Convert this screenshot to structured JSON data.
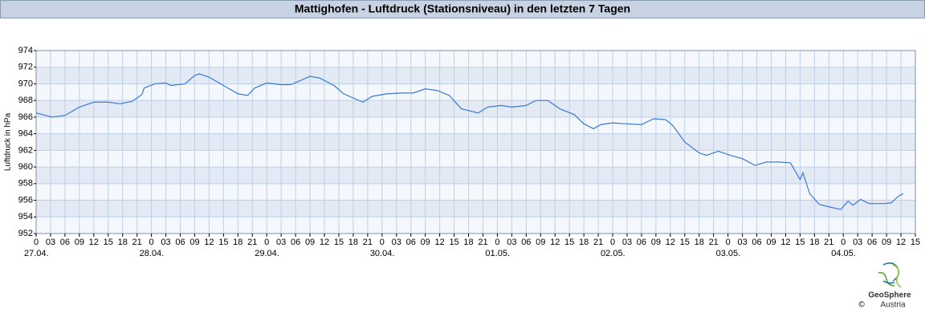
{
  "chart_data": {
    "type": "line",
    "title": "Mattighofen - Luftdruck (Stationsniveau) in den letzten 7 Tagen",
    "ylabel": "Luftdruck in hPa",
    "x": [
      0,
      3.3,
      6,
      9,
      12,
      15,
      17.5,
      20,
      22,
      22.5,
      24.7,
      27,
      28,
      31,
      33,
      34,
      36,
      39,
      42,
      44,
      45.5,
      48,
      51,
      53,
      57,
      59,
      62,
      64,
      68,
      70,
      73,
      76,
      78.5,
      81,
      83.5,
      86,
      88.5,
      92,
      94,
      96.7,
      99,
      102,
      104,
      106.5,
      109,
      112,
      114,
      116,
      117.5,
      120,
      122.5,
      126,
      128.5,
      131,
      132.5,
      135,
      138,
      139.5,
      142,
      144.5,
      147,
      149.6,
      152,
      154.6,
      157,
      159,
      159.6,
      161,
      163,
      165.8,
      167.5,
      169,
      170,
      171.6,
      173.3,
      176.7,
      178,
      179.5,
      180.5
    ],
    "series": [
      {
        "name": "Luftdruck",
        "color": "#3b78d8",
        "values": [
          966.5,
          966.0,
          966.2,
          967.2,
          967.8,
          967.8,
          967.6,
          967.9,
          968.7,
          969.5,
          970.0,
          970.1,
          969.8,
          970.0,
          971.0,
          971.2,
          970.8,
          969.8,
          968.8,
          968.6,
          969.5,
          970.1,
          969.9,
          969.9,
          970.9,
          970.7,
          969.8,
          968.8,
          967.8,
          968.5,
          968.8,
          968.9,
          968.9,
          969.4,
          969.2,
          968.6,
          967.0,
          966.5,
          967.2,
          967.4,
          967.2,
          967.4,
          968.0,
          968.0,
          967.0,
          966.3,
          965.2,
          964.6,
          965.1,
          965.3,
          965.2,
          965.1,
          965.8,
          965.7,
          965.0,
          963.0,
          961.7,
          961.4,
          961.9,
          961.4,
          961.0,
          960.2,
          960.6,
          960.6,
          960.5,
          958.5,
          959.3,
          956.8,
          955.5,
          955.1,
          954.9,
          955.9,
          955.4,
          956.1,
          955.6,
          955.6,
          955.7,
          956.5,
          956.8
        ]
      }
    ],
    "xlim": [
      0,
      183
    ],
    "xticks": [
      0,
      {
        "value": 3,
        "label": "03"
      },
      {
        "value": 6,
        "label": "06"
      },
      {
        "value": 9,
        "label": "09"
      },
      12,
      15,
      18,
      21,
      {
        "value": 24,
        "label": "0"
      },
      {
        "value": 27,
        "label": "03"
      },
      {
        "value": 30,
        "label": "06"
      },
      {
        "value": 33,
        "label": "09"
      },
      {
        "value": 36,
        "label": "12"
      },
      {
        "value": 39,
        "label": "15"
      },
      {
        "value": 42,
        "label": "18"
      },
      {
        "value": 45,
        "label": "21"
      },
      {
        "value": 48,
        "label": "0"
      },
      {
        "value": 51,
        "label": "03"
      },
      {
        "value": 54,
        "label": "06"
      },
      {
        "value": 57,
        "label": "09"
      },
      {
        "value": 60,
        "label": "12"
      },
      {
        "value": 63,
        "label": "15"
      },
      {
        "value": 66,
        "label": "18"
      },
      {
        "value": 69,
        "label": "21"
      },
      {
        "value": 72,
        "label": "0"
      },
      {
        "value": 75,
        "label": "03"
      },
      {
        "value": 78,
        "label": "06"
      },
      {
        "value": 81,
        "label": "09"
      },
      {
        "value": 84,
        "label": "12"
      },
      {
        "value": 87,
        "label": "15"
      },
      {
        "value": 90,
        "label": "18"
      },
      {
        "value": 93,
        "label": "21"
      },
      {
        "value": 96,
        "label": "0"
      },
      {
        "value": 99,
        "label": "03"
      },
      {
        "value": 102,
        "label": "06"
      },
      {
        "value": 105,
        "label": "09"
      },
      {
        "value": 108,
        "label": "12"
      },
      {
        "value": 111,
        "label": "15"
      },
      {
        "value": 114,
        "label": "18"
      },
      {
        "value": 117,
        "label": "21"
      },
      {
        "value": 120,
        "label": "0"
      },
      {
        "value": 123,
        "label": "03"
      },
      {
        "value": 126,
        "label": "06"
      },
      {
        "value": 129,
        "label": "09"
      },
      {
        "value": 132,
        "label": "12"
      },
      {
        "value": 135,
        "label": "15"
      },
      {
        "value": 138,
        "label": "18"
      },
      {
        "value": 141,
        "label": "21"
      },
      {
        "value": 144,
        "label": "0"
      },
      {
        "value": 147,
        "label": "03"
      },
      {
        "value": 150,
        "label": "06"
      },
      {
        "value": 153,
        "label": "09"
      },
      {
        "value": 156,
        "label": "12"
      },
      {
        "value": 159,
        "label": "15"
      },
      {
        "value": 162,
        "label": "18"
      },
      {
        "value": 165,
        "label": "21"
      },
      {
        "value": 168,
        "label": "0"
      },
      {
        "value": 171,
        "label": "03"
      },
      {
        "value": 174,
        "label": "06"
      },
      {
        "value": 177,
        "label": "09"
      },
      {
        "value": 180,
        "label": "12"
      },
      {
        "value": 183,
        "label": "15"
      }
    ],
    "day_labels": [
      {
        "value": 0,
        "label": "27.04."
      },
      {
        "value": 24,
        "label": "28.04."
      },
      {
        "value": 48,
        "label": "29.04."
      },
      {
        "value": 72,
        "label": "30.04."
      },
      {
        "value": 96,
        "label": "01.05."
      },
      {
        "value": 120,
        "label": "02.05."
      },
      {
        "value": 144,
        "label": "03.05."
      },
      {
        "value": 168,
        "label": "04.05."
      }
    ],
    "ylim": [
      952,
      974
    ],
    "yticks": [
      952,
      954,
      956,
      958,
      960,
      962,
      964,
      966,
      968,
      970,
      972,
      974
    ],
    "grid": true
  },
  "footer": {
    "copyright": "©",
    "brand": "GeoSphere",
    "country": "Austria"
  }
}
